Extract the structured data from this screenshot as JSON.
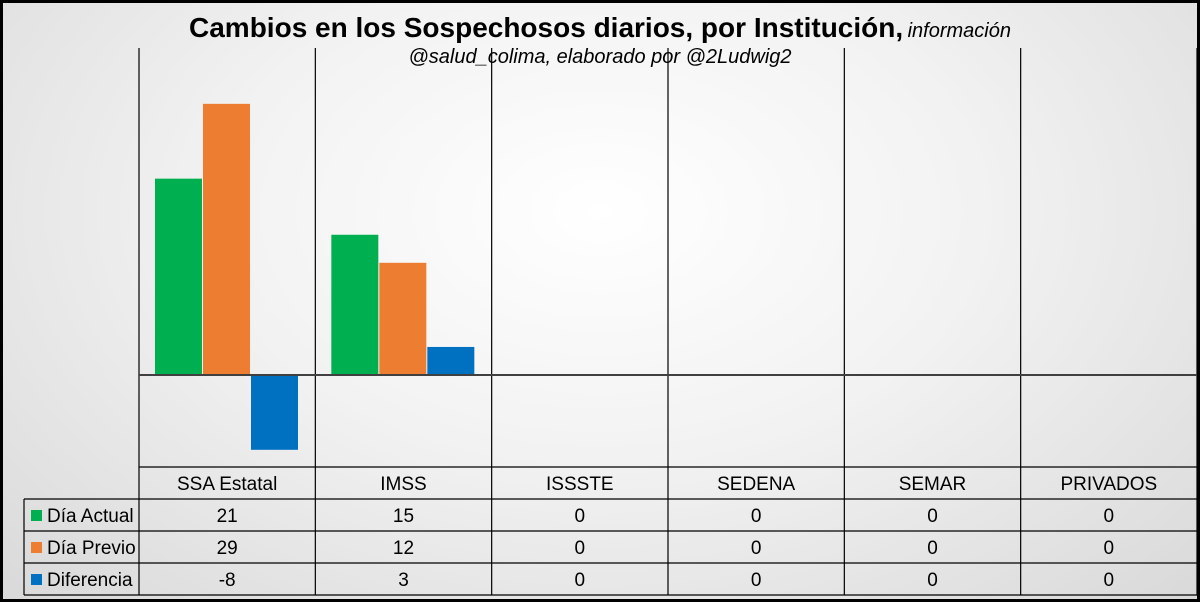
{
  "chart_data": {
    "type": "bar",
    "title": "Cambios en los Sospechosos diarios, por Institución,",
    "subtitle_part1": "información",
    "subtitle_part2": "@salud_colima, elaborado por @2Ludwig2",
    "categories": [
      "SSA Estatal",
      "IMSS",
      "ISSSTE",
      "SEDENA",
      "SEMAR",
      "PRIVADOS"
    ],
    "series": [
      {
        "name": "Día Actual",
        "values": [
          21,
          15,
          0,
          0,
          0,
          0
        ],
        "color": "#00b050"
      },
      {
        "name": "Día Previo",
        "values": [
          29,
          12,
          0,
          0,
          0,
          0
        ],
        "color": "#ed7d31"
      },
      {
        "name": "Diferencia",
        "values": [
          -8,
          3,
          0,
          0,
          0,
          0
        ],
        "color": "#0070c0"
      }
    ],
    "ylim": [
      -10,
      30
    ],
    "data_table": true,
    "grid": "vertical category separators",
    "background": "#e8e8e8",
    "border_color": "#000000"
  }
}
